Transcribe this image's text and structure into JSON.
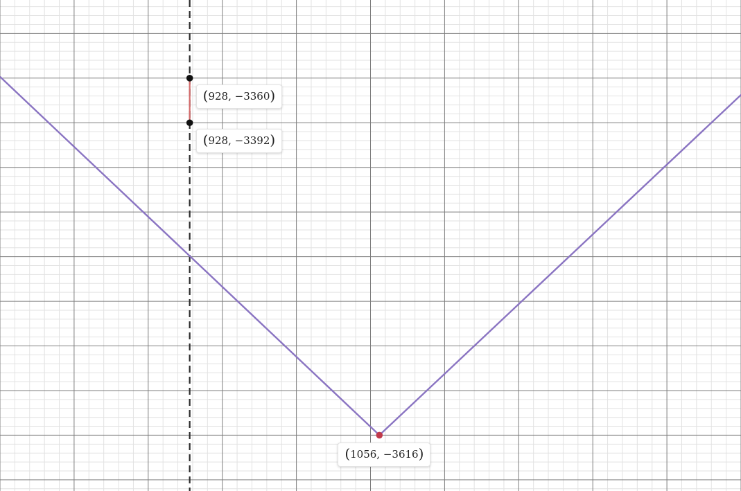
{
  "chart_data": {
    "type": "line",
    "x_range": [
      800,
      1300
    ],
    "y_range": [
      -3656,
      -3304
    ],
    "grid": true,
    "vertical_line": {
      "x": 928,
      "style": "dashed",
      "color": "#2d2d2d"
    },
    "series": [
      {
        "color": "#8a74c2",
        "points": [
          {
            "x": 800,
            "y": -3359
          },
          {
            "x": 1056,
            "y": -3616
          },
          {
            "x": 1342,
            "y": -3330
          }
        ]
      }
    ],
    "segment": {
      "color": "#d36b6b",
      "from": {
        "x": 928,
        "y": -3360
      },
      "to": {
        "x": 928,
        "y": -3392
      }
    },
    "marked_points": [
      {
        "x": 928,
        "y": -3360,
        "color": "#111111",
        "label": "928, −3360"
      },
      {
        "x": 928,
        "y": -3392,
        "color": "#111111",
        "label": "928, −3392"
      },
      {
        "x": 1056,
        "y": -3616,
        "color": "#c0394b",
        "label": "1056, −3616"
      }
    ]
  }
}
